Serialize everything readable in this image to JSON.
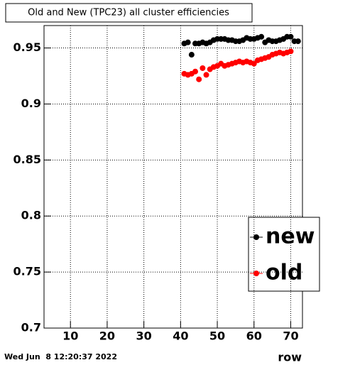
{
  "chart_data": {
    "type": "scatter",
    "title": "Old and New (TPC23) all cluster efficiencies",
    "x_label": "row",
    "timestamp": "Wed Jun  8 12:20:37 2022",
    "xlim": [
      2.8,
      73.2
    ],
    "ylim": [
      0.7,
      0.97
    ],
    "xticks": [
      10,
      20,
      30,
      40,
      50,
      60,
      70
    ],
    "yticks": [
      0.7,
      0.75,
      0.8,
      0.85,
      0.9,
      0.95
    ],
    "grid": true,
    "legend": "lower right",
    "series": [
      {
        "name": "new",
        "color": "#000000",
        "x": [
          41,
          42,
          43,
          44,
          45,
          46,
          47,
          48,
          49,
          50,
          51,
          52,
          53,
          54,
          55,
          56,
          57,
          58,
          59,
          60,
          61,
          62,
          63,
          64,
          65,
          66,
          67,
          68,
          69,
          70,
          71,
          72
        ],
        "values": [
          0.954,
          0.955,
          0.944,
          0.954,
          0.954,
          0.955,
          0.954,
          0.955,
          0.957,
          0.958,
          0.958,
          0.958,
          0.957,
          0.957,
          0.956,
          0.956,
          0.957,
          0.959,
          0.958,
          0.958,
          0.959,
          0.96,
          0.955,
          0.957,
          0.956,
          0.956,
          0.957,
          0.958,
          0.96,
          0.96,
          0.956,
          0.956
        ]
      },
      {
        "name": "old",
        "color": "#ff0000",
        "x": [
          41,
          42,
          43,
          44,
          45,
          46,
          47,
          48,
          49,
          50,
          51,
          52,
          53,
          54,
          55,
          56,
          57,
          58,
          59,
          60,
          61,
          62,
          63,
          64,
          65,
          66,
          67,
          68,
          69,
          70
        ],
        "values": [
          0.927,
          0.926,
          0.927,
          0.929,
          0.922,
          0.932,
          0.926,
          0.931,
          0.933,
          0.934,
          0.936,
          0.934,
          0.935,
          0.936,
          0.937,
          0.938,
          0.937,
          0.938,
          0.937,
          0.936,
          0.939,
          0.94,
          0.941,
          0.942,
          0.944,
          0.945,
          0.946,
          0.945,
          0.946,
          0.947
        ]
      }
    ]
  }
}
